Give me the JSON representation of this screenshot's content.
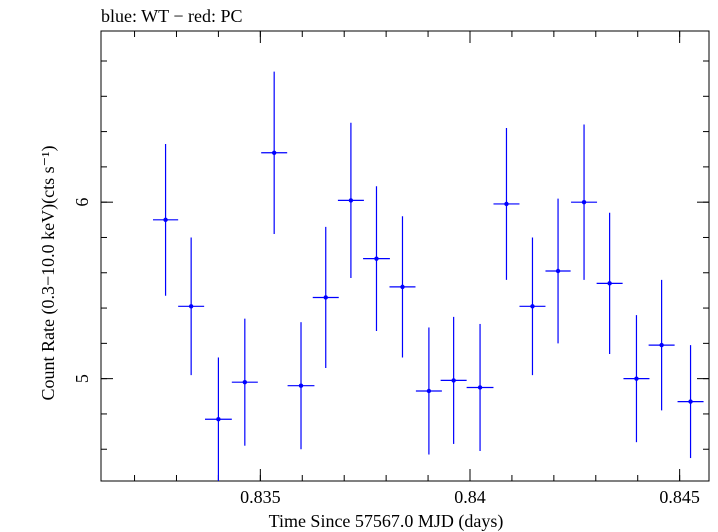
{
  "chart_data": {
    "type": "scatter",
    "title": "blue: WT − red: PC",
    "xlabel": "Time Since 57567.0 MJD (days)",
    "ylabel": "Count Rate (0.3−10.0 keV)(cts s⁻¹)",
    "xlim": [
      0.8312,
      0.8457
    ],
    "ylim": [
      4.42,
      6.97
    ],
    "x_ticks": [
      {
        "value": 0.835,
        "label": "0.835"
      },
      {
        "value": 0.84,
        "label": "0.84"
      },
      {
        "value": 0.845,
        "label": "0.845"
      }
    ],
    "x_minor_step": 0.001,
    "y_ticks": [
      {
        "value": 5,
        "label": "5"
      },
      {
        "value": 6,
        "label": "6"
      }
    ],
    "y_minor_step": 0.2,
    "grid": false,
    "series": [
      {
        "color": "#0000ff",
        "points": [
          {
            "x": 0.83274,
            "xerr": 0.0003,
            "y": 5.9,
            "yerr": 0.43
          },
          {
            "x": 0.83335,
            "xerr": 0.00031,
            "y": 5.41,
            "yerr": 0.39
          },
          {
            "x": 0.834,
            "xerr": 0.00032,
            "y": 4.77,
            "yerr": 0.35
          },
          {
            "x": 0.83463,
            "xerr": 0.00031,
            "y": 4.98,
            "yerr": 0.36
          },
          {
            "x": 0.83533,
            "xerr": 0.00031,
            "y": 6.28,
            "yerr": 0.46
          },
          {
            "x": 0.83597,
            "xerr": 0.00032,
            "y": 4.96,
            "yerr": 0.36
          },
          {
            "x": 0.83656,
            "xerr": 0.00031,
            "y": 5.46,
            "yerr": 0.4
          },
          {
            "x": 0.83716,
            "xerr": 0.00031,
            "y": 6.01,
            "yerr": 0.44
          },
          {
            "x": 0.83777,
            "xerr": 0.00032,
            "y": 5.68,
            "yerr": 0.41
          },
          {
            "x": 0.83839,
            "xerr": 0.00031,
            "y": 5.52,
            "yerr": 0.4
          },
          {
            "x": 0.83902,
            "xerr": 0.00031,
            "y": 4.93,
            "yerr": 0.36
          },
          {
            "x": 0.83961,
            "xerr": 0.00031,
            "y": 4.99,
            "yerr": 0.36
          },
          {
            "x": 0.84024,
            "xerr": 0.00032,
            "y": 4.95,
            "yerr": 0.36
          },
          {
            "x": 0.84087,
            "xerr": 0.00031,
            "y": 5.99,
            "yerr": 0.43
          },
          {
            "x": 0.84149,
            "xerr": 0.00031,
            "y": 5.41,
            "yerr": 0.39
          },
          {
            "x": 0.8421,
            "xerr": 0.0003,
            "y": 5.61,
            "yerr": 0.41
          },
          {
            "x": 0.84272,
            "xerr": 0.00031,
            "y": 6.0,
            "yerr": 0.44
          },
          {
            "x": 0.84333,
            "xerr": 0.00031,
            "y": 5.54,
            "yerr": 0.4
          },
          {
            "x": 0.84397,
            "xerr": 0.00031,
            "y": 5.0,
            "yerr": 0.36
          },
          {
            "x": 0.84457,
            "xerr": 0.00031,
            "y": 5.19,
            "yerr": 0.37
          },
          {
            "x": 0.84526,
            "xerr": 0.00031,
            "y": 4.87,
            "yerr": 0.32
          }
        ]
      }
    ]
  }
}
